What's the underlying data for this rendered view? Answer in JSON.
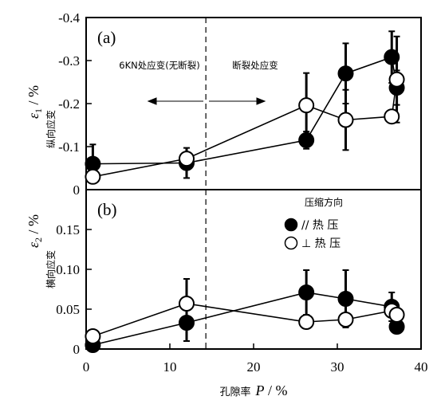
{
  "chart_data": [
    {
      "type": "scatter",
      "panel_label": "(a)",
      "ylabel_symbol": "ε",
      "ylabel_sub": "1",
      "ylabel_unit": " / %",
      "ylabel_cn": "纵向应变",
      "ylim": [
        0,
        -0.4
      ],
      "y_ticks": [
        "-0.4",
        "-0.3",
        "-0.2",
        "-0.1",
        "0"
      ],
      "annotations": {
        "left": "6KN处应变(无断裂)",
        "right": "断裂处应变"
      },
      "series": [
        {
          "marker": "filled",
          "points": [
            {
              "x": 0.8,
              "y": -0.06,
              "err": 0.045
            },
            {
              "x": 12.0,
              "y": -0.062,
              "err": 0.035
            },
            {
              "x": 26.3,
              "y": -0.115,
              "err": 0.02
            },
            {
              "x": 31.0,
              "y": -0.27,
              "err": 0.07
            },
            {
              "x": 36.5,
              "y": -0.308,
              "err": 0.06
            },
            {
              "x": 37.1,
              "y": -0.237,
              "err": 0.04
            }
          ]
        },
        {
          "marker": "open",
          "points": [
            {
              "x": 0.8,
              "y": -0.03,
              "err": 0.0
            },
            {
              "x": 12.0,
              "y": -0.072,
              "err": 0.0
            },
            {
              "x": 26.3,
              "y": -0.196,
              "err": 0.075
            },
            {
              "x": 31.0,
              "y": -0.162,
              "err": 0.07
            },
            {
              "x": 36.5,
              "y": -0.17,
              "err": 0.0
            },
            {
              "x": 37.1,
              "y": -0.256,
              "err": 0.1
            }
          ]
        }
      ]
    },
    {
      "type": "scatter",
      "panel_label": "(b)",
      "ylabel_symbol": "ε",
      "ylabel_sub": "2",
      "ylabel_unit": " / %",
      "ylabel_cn": "横向应变",
      "ylim": [
        0,
        0.2
      ],
      "y_ticks": [
        "0",
        "0.05",
        "0.10",
        "0.15"
      ],
      "legend": {
        "title": "压缩方向",
        "items": [
          {
            "marker": "filled",
            "label": "// 热  压"
          },
          {
            "marker": "open",
            "label": "⊥  热  压"
          }
        ]
      },
      "series": [
        {
          "marker": "filled",
          "points": [
            {
              "x": 0.8,
              "y": 0.005,
              "err": 0.0
            },
            {
              "x": 12.0,
              "y": 0.033,
              "err": 0.023
            },
            {
              "x": 26.3,
              "y": 0.071,
              "err": 0.028
            },
            {
              "x": 31.0,
              "y": 0.063,
              "err": 0.036
            },
            {
              "x": 36.5,
              "y": 0.053,
              "err": 0.018
            },
            {
              "x": 37.1,
              "y": 0.028,
              "err": 0.0
            }
          ]
        },
        {
          "marker": "open",
          "points": [
            {
              "x": 0.8,
              "y": 0.016,
              "err": 0.0
            },
            {
              "x": 12.0,
              "y": 0.057,
              "err": 0.031
            },
            {
              "x": 26.3,
              "y": 0.034,
              "err": 0.0
            },
            {
              "x": 31.0,
              "y": 0.037,
              "err": 0.0
            },
            {
              "x": 36.5,
              "y": 0.048,
              "err": 0.0
            },
            {
              "x": 37.1,
              "y": 0.043,
              "err": 0.0
            }
          ]
        }
      ]
    }
  ],
  "x_axis": {
    "label_cn": "孔隙率",
    "label_symbol": "P",
    "label_unit": " / %",
    "xlim": [
      0,
      40
    ],
    "ticks": [
      "0",
      "10",
      "20",
      "30",
      "40"
    ],
    "dashed_line_at": 14.3
  }
}
